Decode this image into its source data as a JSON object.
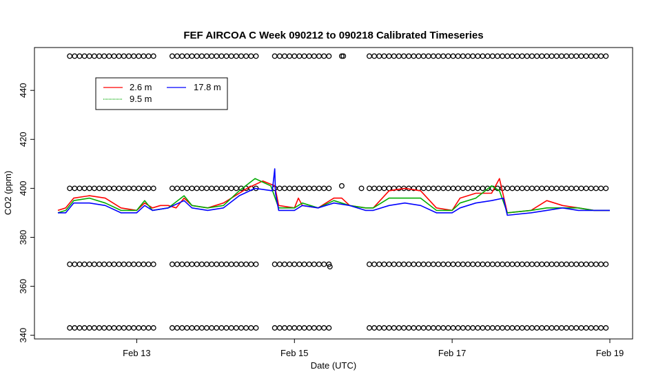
{
  "chart_data": {
    "type": "line",
    "title": "FEF AIRCOA C  Week 090212 to 090218  Calibrated Timeseries",
    "xlabel": "Date (UTC)",
    "ylabel": "CO2 (ppm)",
    "x_ticks": [
      {
        "day": 13,
        "label": "Feb 13"
      },
      {
        "day": 15,
        "label": "Feb 15"
      },
      {
        "day": 17,
        "label": "Feb 17"
      },
      {
        "day": 19,
        "label": "Feb 19"
      }
    ],
    "xlim": [
      12.0,
      19.0
    ],
    "y_ticks": [
      340,
      360,
      380,
      400,
      420,
      440
    ],
    "ylim": [
      338.5,
      457.5
    ],
    "legend": {
      "placement": "top-left",
      "entries": [
        {
          "name": "2.6 m",
          "color": "#ff0000"
        },
        {
          "name": "9.5 m",
          "color": "#00aa00"
        },
        {
          "name": "17.8 m",
          "color": "#0000ff"
        }
      ]
    },
    "series": [
      {
        "name": "2.6 m",
        "color": "#ff0000",
        "points": [
          [
            12.0,
            391
          ],
          [
            12.1,
            392
          ],
          [
            12.2,
            396
          ],
          [
            12.4,
            397
          ],
          [
            12.6,
            396
          ],
          [
            12.8,
            392
          ],
          [
            13.0,
            391
          ],
          [
            13.1,
            394
          ],
          [
            13.2,
            392
          ],
          [
            13.3,
            393
          ],
          [
            13.4,
            393
          ],
          [
            13.5,
            392
          ],
          [
            13.6,
            396
          ],
          [
            13.7,
            393
          ],
          [
            13.9,
            392
          ],
          [
            14.1,
            394
          ],
          [
            14.4,
            400
          ],
          [
            14.6,
            403
          ],
          [
            14.75,
            401
          ],
          [
            14.8,
            393
          ],
          [
            15.0,
            392
          ],
          [
            15.05,
            396
          ],
          [
            15.1,
            393
          ],
          [
            15.3,
            392
          ],
          [
            15.5,
            396
          ],
          [
            15.6,
            396
          ],
          [
            15.7,
            393
          ],
          [
            15.9,
            392
          ],
          [
            16.0,
            392
          ],
          [
            16.2,
            399
          ],
          [
            16.4,
            400
          ],
          [
            16.6,
            399
          ],
          [
            16.8,
            392
          ],
          [
            17.0,
            391
          ],
          [
            17.1,
            396
          ],
          [
            17.3,
            398
          ],
          [
            17.5,
            398
          ],
          [
            17.6,
            404
          ],
          [
            17.7,
            390
          ],
          [
            18.0,
            391
          ],
          [
            18.2,
            395
          ],
          [
            18.4,
            393
          ],
          [
            18.6,
            392
          ],
          [
            18.8,
            391
          ],
          [
            19.0,
            391
          ]
        ]
      },
      {
        "name": "9.5 m",
        "color": "#00aa00",
        "points": [
          [
            12.0,
            390
          ],
          [
            12.1,
            391
          ],
          [
            12.2,
            395
          ],
          [
            12.4,
            396
          ],
          [
            12.6,
            394
          ],
          [
            12.8,
            391
          ],
          [
            13.0,
            391
          ],
          [
            13.1,
            395
          ],
          [
            13.2,
            391
          ],
          [
            13.4,
            392
          ],
          [
            13.6,
            397
          ],
          [
            13.7,
            393
          ],
          [
            13.9,
            392
          ],
          [
            14.1,
            393
          ],
          [
            14.3,
            399
          ],
          [
            14.5,
            404
          ],
          [
            14.7,
            401
          ],
          [
            14.8,
            392
          ],
          [
            15.0,
            392
          ],
          [
            15.1,
            394
          ],
          [
            15.3,
            392
          ],
          [
            15.5,
            395
          ],
          [
            15.7,
            393
          ],
          [
            15.9,
            392
          ],
          [
            16.0,
            392
          ],
          [
            16.2,
            396
          ],
          [
            16.4,
            396
          ],
          [
            16.6,
            396
          ],
          [
            16.8,
            391
          ],
          [
            17.0,
            391
          ],
          [
            17.1,
            394
          ],
          [
            17.3,
            396
          ],
          [
            17.5,
            401
          ],
          [
            17.6,
            399
          ],
          [
            17.7,
            390
          ],
          [
            18.0,
            391
          ],
          [
            18.2,
            392
          ],
          [
            18.4,
            392
          ],
          [
            18.6,
            392
          ],
          [
            18.8,
            391
          ],
          [
            19.0,
            391
          ]
        ]
      },
      {
        "name": "17.8 m",
        "color": "#0000ff",
        "points": [
          [
            12.0,
            390
          ],
          [
            12.1,
            390
          ],
          [
            12.2,
            394
          ],
          [
            12.4,
            394
          ],
          [
            12.6,
            393
          ],
          [
            12.8,
            390
          ],
          [
            13.0,
            390
          ],
          [
            13.1,
            393
          ],
          [
            13.2,
            391
          ],
          [
            13.4,
            392
          ],
          [
            13.6,
            395
          ],
          [
            13.7,
            392
          ],
          [
            13.9,
            391
          ],
          [
            14.1,
            392
          ],
          [
            14.3,
            397
          ],
          [
            14.5,
            400
          ],
          [
            14.72,
            399
          ],
          [
            14.75,
            408
          ],
          [
            14.76,
            398
          ],
          [
            14.8,
            391
          ],
          [
            15.0,
            391
          ],
          [
            15.1,
            393
          ],
          [
            15.3,
            392
          ],
          [
            15.5,
            394
          ],
          [
            15.7,
            393
          ],
          [
            15.9,
            391
          ],
          [
            16.0,
            391
          ],
          [
            16.2,
            393
          ],
          [
            16.4,
            394
          ],
          [
            16.6,
            393
          ],
          [
            16.8,
            390
          ],
          [
            17.0,
            390
          ],
          [
            17.1,
            392
          ],
          [
            17.3,
            394
          ],
          [
            17.5,
            395
          ],
          [
            17.65,
            396
          ],
          [
            17.7,
            389
          ],
          [
            18.0,
            390
          ],
          [
            18.2,
            391
          ],
          [
            18.4,
            392
          ],
          [
            18.6,
            391
          ],
          [
            18.8,
            391
          ],
          [
            19.0,
            391
          ]
        ]
      },
      {
        "name": "",
        "type": "scatter",
        "marker": "open-circle",
        "color": "#000000",
        "levels": [
          454,
          400,
          369,
          343
        ],
        "x_ranges": [
          [
            12.15,
            13.25
          ],
          [
            13.45,
            14.55
          ],
          [
            14.75,
            15.45
          ],
          [
            15.95,
            19.0
          ]
        ],
        "extra_points": [
          [
            15.6,
            454
          ],
          [
            15.62,
            454
          ],
          [
            15.6,
            401
          ],
          [
            15.85,
            400
          ],
          [
            15.45,
            368
          ]
        ]
      }
    ]
  }
}
